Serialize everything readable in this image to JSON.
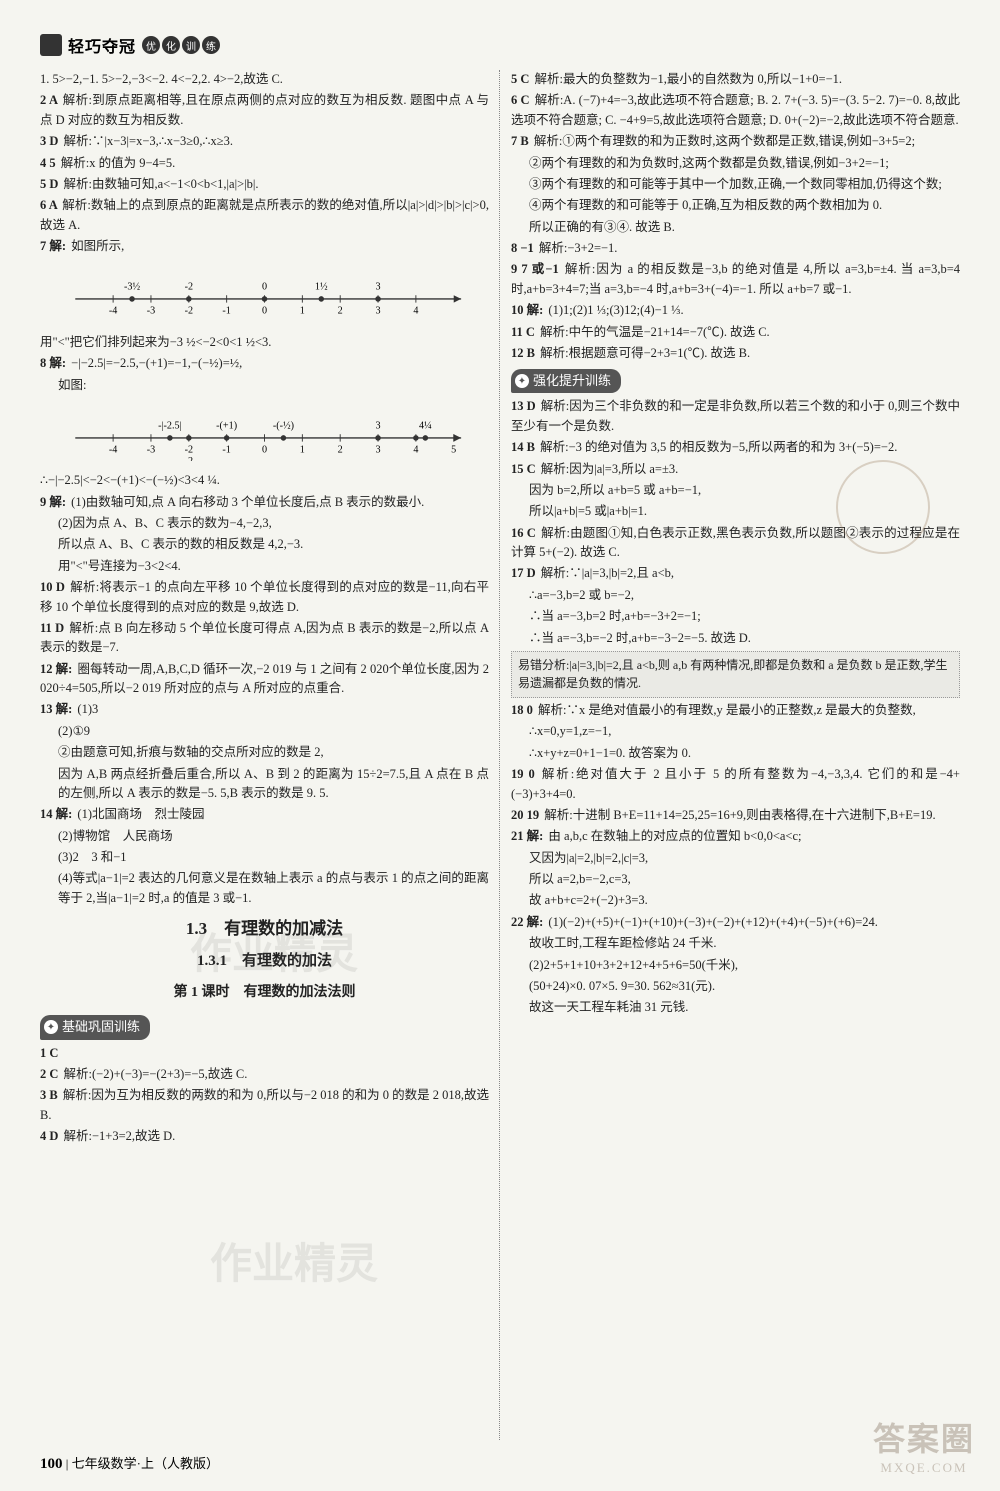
{
  "header": {
    "brand": "轻巧夺冠",
    "pill_chars": [
      "优",
      "化",
      "训",
      "练"
    ]
  },
  "left": [
    {
      "n": "",
      "t": "1. 5>−2,−1. 5>−2,−3<−2. 4<−2,2. 4>−2,故选 C."
    },
    {
      "n": "2 A",
      "t": "解析:到原点距离相等,且在原点两侧的点对应的数互为相反数. 题图中点 A 与点 D 对应的数互为相反数."
    },
    {
      "n": "3 D",
      "t": "解析:∵|x−3|=x−3,∴x−3≥0,∴x≥3."
    },
    {
      "n": "4 5",
      "t": "解析:x 的值为 9−4=5."
    },
    {
      "n": "5 D",
      "t": "解析:由数轴可知,a<−1<0<b<1,|a|>|b|."
    },
    {
      "n": "6 A",
      "t": "解析:数轴上的点到原点的距离就是点所表示的数的绝对值,所以|a|>|d|>|b|>|c|>0,故选 A."
    },
    {
      "n": "7 解:",
      "t": "如图所示,"
    }
  ],
  "numline1": {
    "min": -5,
    "max": 5,
    "step": 1,
    "labels_below": [
      "-4",
      "-3",
      "-2",
      "-1",
      "0",
      "1",
      "2",
      "3",
      "4"
    ],
    "points": [
      {
        "x": -3.5,
        "label": "-3½",
        "label_y": "above"
      },
      {
        "x": -2,
        "label": "-2",
        "label_y": "above"
      },
      {
        "x": 0,
        "label": "0",
        "label_y": "above"
      },
      {
        "x": 1.5,
        "label": "1½",
        "label_y": "above"
      },
      {
        "x": 3,
        "label": "3",
        "label_y": "above"
      }
    ],
    "line_color": "#333",
    "point_color": "#333"
  },
  "left_after1": [
    {
      "t": "用\"<\"把它们排列起来为−3 ½<−2<0<1 ½<3."
    },
    {
      "n": "8 解:",
      "t": "−|−2.5|=−2.5,−(+1)=−1,−(−½)=½,"
    },
    {
      "t": "如图:",
      "indent": true
    }
  ],
  "numline2": {
    "min": -5,
    "max": 5,
    "step": 1,
    "labels_below": [
      "-4",
      "-3",
      "-2",
      "-1",
      "0",
      "1",
      "2",
      "3",
      "4",
      "5"
    ],
    "points": [
      {
        "x": -2.5,
        "label": "-|-2.5|",
        "label_y": "above"
      },
      {
        "x": -2,
        "label": "-2",
        "label_y": "below2"
      },
      {
        "x": -1,
        "label": "-(+1)",
        "label_y": "above"
      },
      {
        "x": 0.5,
        "label": "-(-½)",
        "label_y": "above"
      },
      {
        "x": 3,
        "label": "3",
        "label_y": "above"
      },
      {
        "x": 4,
        "label": "",
        "label_y": "above"
      },
      {
        "x": 4.25,
        "label": "4¼",
        "label_y": "above"
      }
    ],
    "line_color": "#333",
    "point_color": "#333"
  },
  "left_after2": [
    {
      "t": "∴−|−2.5|<−2<−(+1)<−(−½)<3<4 ¼."
    },
    {
      "n": "9 解:",
      "t": "(1)由数轴可知,点 A 向右移动 3 个单位长度后,点 B 表示的数最小."
    },
    {
      "t": "(2)因为点 A、B、C 表示的数为−4,−2,3,",
      "indent": true
    },
    {
      "t": "所以点 A、B、C 表示的数的相反数是 4,2,−3.",
      "indent": true
    },
    {
      "t": "用\"<\"号连接为−3<2<4.",
      "indent": true
    },
    {
      "n": "10 D",
      "t": "解析:将表示−1 的点向左平移 10 个单位长度得到的点对应的数是−11,向右平移 10 个单位长度得到的点对应的数是 9,故选 D."
    },
    {
      "n": "11 D",
      "t": "解析:点 B 向左移动 5 个单位长度可得点 A,因为点 B 表示的数是−2,所以点 A 表示的数是−7."
    },
    {
      "n": "12 解:",
      "t": "圈每转动一周,A,B,C,D 循环一次,−2 019 与 1 之间有 2 020个单位长度,因为 2 020÷4=505,所以−2 019 所对应的点与 A 所对应的点重合."
    },
    {
      "n": "13 解:",
      "t": "(1)3"
    },
    {
      "t": "(2)①9",
      "indent": true
    },
    {
      "t": "②由题意可知,折痕与数轴的交点所对应的数是 2,",
      "indent": true
    },
    {
      "t": "因为 A,B 两点经折叠后重合,所以 A、B 到 2 的距离为 15÷2=7.5,且 A 点在 B 点的左侧,所以 A 表示的数是−5. 5,B 表示的数是 9. 5.",
      "indent": true
    },
    {
      "n": "14 解:",
      "t": "(1)北国商场　烈士陵园"
    },
    {
      "t": "(2)博物馆　人民商场",
      "indent": true
    },
    {
      "t": "(3)2　3 和−1",
      "indent": true
    },
    {
      "t": "(4)等式|a−1|=2 表达的几何意义是在数轴上表示 a 的点与表示 1 的点之间的距离等于 2,当|a−1|=2 时,a 的值是 3 或−1.",
      "indent": true
    }
  ],
  "section": {
    "h1": "1.3　有理数的加减法",
    "h2": "1.3.1　有理数的加法",
    "h3": "第 1 课时　有理数的加法法则"
  },
  "badge1": "基础巩固训练",
  "left_bottom": [
    {
      "n": "1 C",
      "t": ""
    },
    {
      "n": "2 C",
      "t": "解析:(−2)+(−3)=−(2+3)=−5,故选 C."
    },
    {
      "n": "3 B",
      "t": "解析:因为互为相反数的两数的和为 0,所以与−2 018 的和为 0 的数是 2 018,故选 B."
    },
    {
      "n": "4 D",
      "t": "解析:−1+3=2,故选 D."
    }
  ],
  "right": [
    {
      "n": "5 C",
      "t": "解析:最大的负整数为−1,最小的自然数为 0,所以−1+0=−1."
    },
    {
      "n": "6 C",
      "t": "解析:A. (−7)+4=−3,故此选项不符合题意; B. 2. 7+(−3. 5)=−(3. 5−2. 7)=−0. 8,故此选项不符合题意; C. −4+9=5,故此选项符合题意; D. 0+(−2)=−2,故此选项不符合题意."
    },
    {
      "n": "7 B",
      "t": "解析:①两个有理数的和为正数时,这两个数都是正数,错误,例如−3+5=2;"
    },
    {
      "t": "②两个有理数的和为负数时,这两个数都是负数,错误,例如−3+2=−1;",
      "indent": true
    },
    {
      "t": "③两个有理数的和可能等于其中一个加数,正确,一个数同零相加,仍得这个数;",
      "indent": true
    },
    {
      "t": "④两个有理数的和可能等于 0,正确,互为相反数的两个数相加为 0.",
      "indent": true
    },
    {
      "t": "所以正确的有③④. 故选 B.",
      "indent": true
    },
    {
      "n": "8 −1",
      "t": "解析:−3+2=−1."
    },
    {
      "n": "9 7 或−1",
      "t": "解析:因为 a 的相反数是−3,b 的绝对值是 4,所以 a=3,b=±4. 当 a=3,b=4 时,a+b=3+4=7;当 a=3,b=−4 时,a+b=3+(−4)=−1. 所以 a+b=7 或−1."
    },
    {
      "n": "10 解:",
      "t": "(1)1;(2)1 ⅓;(3)12;(4)−1 ⅓."
    },
    {
      "n": "11 C",
      "t": "解析:中午的气温是−21+14=−7(℃). 故选 C."
    },
    {
      "n": "12 B",
      "t": "解析:根据题意可得−2+3=1(℃). 故选 B."
    }
  ],
  "badge2": "强化提升训练",
  "right_bottom": [
    {
      "n": "13 D",
      "t": "解析:因为三个非负数的和一定是非负数,所以若三个数的和小于 0,则三个数中至少有一个是负数."
    },
    {
      "n": "14 B",
      "t": "解析:−3 的绝对值为 3,5 的相反数为−5,所以两者的和为 3+(−5)=−2."
    },
    {
      "n": "15 C",
      "t": "解析:因为|a|=3,所以 a=±3."
    },
    {
      "t": "因为 b=2,所以 a+b=5 或 a+b=−1,",
      "indent": true
    },
    {
      "t": "所以|a+b|=5 或|a+b|=1.",
      "indent": true
    },
    {
      "n": "16 C",
      "t": "解析:由题图①知,白色表示正数,黑色表示负数,所以题图②表示的过程应是在计算 5+(−2). 故选 C."
    },
    {
      "n": "17 D",
      "t": "解析:∵|a|=3,|b|=2,且 a<b,"
    },
    {
      "t": "∴a=−3,b=2 或 b=−2,",
      "indent": true
    },
    {
      "t": "∴当 a=−3,b=2 时,a+b=−3+2=−1;",
      "indent": true
    },
    {
      "t": "∴当 a=−3,b=−2 时,a+b=−3−2=−5. 故选 D.",
      "indent": true
    }
  ],
  "analysis_box": "易错分析:|a|=3,|b|=2,且 a<b,则 a,b 有两种情况,即都是负数和 a 是负数 b 是正数,学生易遗漏都是负数的情况.",
  "right_end": [
    {
      "n": "18 0",
      "t": "解析:∵x 是绝对值最小的有理数,y 是最小的正整数,z 是最大的负整数,"
    },
    {
      "t": "∴x=0,y=1,z=−1,",
      "indent": true
    },
    {
      "t": "∴x+y+z=0+1−1=0. 故答案为 0.",
      "indent": true
    },
    {
      "n": "19 0",
      "t": "解析:绝对值大于 2 且小于 5 的所有整数为−4,−3,3,4. 它们的和是−4+(−3)+3+4=0."
    },
    {
      "n": "20 19",
      "t": "解析:十进制 B+E=11+14=25,25=16+9,则由表格得,在十六进制下,B+E=19."
    },
    {
      "n": "21 解:",
      "t": "由 a,b,c 在数轴上的对应点的位置知 b<0,0<a<c;"
    },
    {
      "t": "又因为|a|=2,|b|=2,|c|=3,",
      "indent": true
    },
    {
      "t": "所以 a=2,b=−2,c=3,",
      "indent": true
    },
    {
      "t": "故 a+b+c=2+(−2)+3=3.",
      "indent": true
    },
    {
      "n": "22 解:",
      "t": "(1)(−2)+(+5)+(−1)+(+10)+(−3)+(−2)+(+12)+(+4)+(−5)+(+6)=24."
    },
    {
      "t": "故收工时,工程车距检修站 24 千米.",
      "indent": true
    },
    {
      "t": "(2)2+5+1+10+3+2+12+4+5+6=50(千米),",
      "indent": true
    },
    {
      "t": "(50+24)×0. 07×5. 9=30. 562≈31(元).",
      "indent": true
    },
    {
      "t": "故这一天工程车耗油 31 元钱.",
      "indent": true
    }
  ],
  "footer": {
    "page": "100",
    "label": "七年级数学·上（人教版）"
  },
  "watermarks": {
    "wm1": "作业精灵",
    "wm2": "作业精灵",
    "logo_big": "答案圈",
    "logo_small": "MXQE.COM"
  },
  "colors": {
    "bg": "#f5f5f0",
    "text": "#222",
    "line": "#333"
  }
}
